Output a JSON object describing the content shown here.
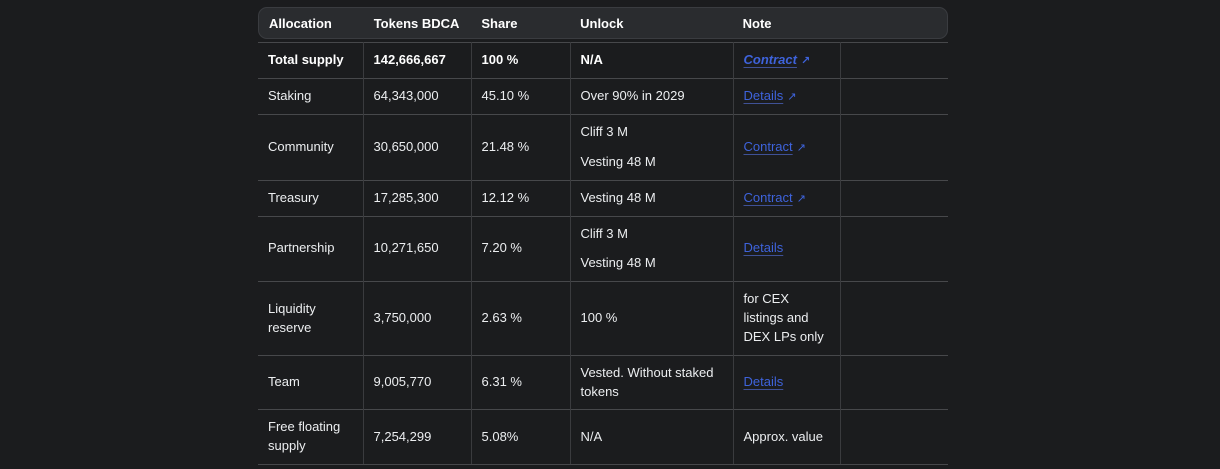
{
  "header": {
    "columns": [
      "Allocation",
      "Tokens BDCA",
      "Share",
      "Unlock",
      "Note"
    ]
  },
  "rows": [
    {
      "allocation": "Total supply",
      "tokens": "142,666,667",
      "share": "100 %",
      "unlock": "N/A",
      "note_link": "Contract",
      "arrow": "↗"
    },
    {
      "allocation": "Staking",
      "tokens": "64,343,000",
      "share": "45.10 %",
      "unlock": "Over 90% in 2029",
      "note_link": "Details",
      "arrow": "↗"
    },
    {
      "allocation": "Community",
      "tokens": "30,650,000",
      "share": "21.48 %",
      "unlock_lines": [
        "Cliff 3 M",
        "Vesting 48 M"
      ],
      "note_link": "Contract",
      "arrow": "↗"
    },
    {
      "allocation": "Treasury",
      "tokens": "17,285,300",
      "share": "12.12 %",
      "unlock": "Vesting 48 M",
      "note_link": "Contract",
      "arrow": "↗"
    },
    {
      "allocation": "Partnership",
      "tokens": "10,271,650",
      "share": "7.20 %",
      "unlock_lines": [
        "Cliff 3 M",
        "Vesting 48 M"
      ],
      "note_link": "Details"
    },
    {
      "allocation": "Liquidity reserve",
      "tokens": "3,750,000",
      "share": "2.63 %",
      "unlock": "100 %",
      "note_text": "for CEX listings and DEX LPs only"
    },
    {
      "allocation": "Team",
      "tokens": "9,005,770",
      "share": "6.31 %",
      "unlock": "Vested. Without staked tokens",
      "note_link": "Details"
    },
    {
      "allocation": "Free floating supply",
      "tokens": "7,254,299",
      "share": "5.08%",
      "unlock": "N/A",
      "note_text": "Approx. value"
    }
  ],
  "colors": {
    "page_bg": "#1b1c1e",
    "header_bg": "#2a2c2f",
    "row_border": "#47484b",
    "column_border": "#3a3b3e",
    "link_blue": "#3e63dc",
    "text": "#eceef0"
  }
}
